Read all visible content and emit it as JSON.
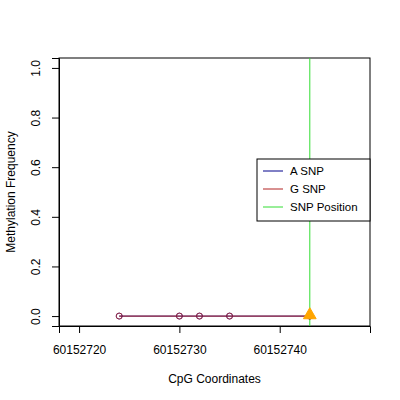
{
  "chart_data": {
    "type": "line",
    "xlabel": "CpG Coordinates",
    "ylabel": "Methylation Frequency",
    "xlim": [
      60152718,
      60152749
    ],
    "xticks": [
      60152720,
      60152730,
      60152740
    ],
    "ylim": [
      -0.04,
      1.04
    ],
    "yticks": [
      {
        "value": 0,
        "label": "0.0"
      },
      {
        "value": 0.2,
        "label": "0.2"
      },
      {
        "value": 0.4,
        "label": "0.4"
      },
      {
        "value": 0.6,
        "label": "0.6"
      },
      {
        "value": 0.8,
        "label": "0.8"
      },
      {
        "value": 1,
        "label": "1.0"
      }
    ],
    "legend": "right",
    "series": [
      {
        "name": "A SNP",
        "color": "#00008b",
        "marker": "circle",
        "x": [
          60152724,
          60152730,
          60152732,
          60152735,
          60152743
        ],
        "values": [
          0,
          0,
          0,
          0,
          0
        ]
      },
      {
        "name": "G SNP",
        "color": "#b22222",
        "marker": "circle",
        "x": [
          60152724,
          60152730,
          60152732,
          60152735,
          60152743
        ],
        "values": [
          0,
          0,
          0,
          0,
          0
        ]
      },
      {
        "name": "SNP Position",
        "color": "#33dd33",
        "type": "vline",
        "x": [
          60152743
        ]
      },
      {
        "type": "scatter",
        "color": "#ffa500",
        "marker": "triangle",
        "x": [
          60152743
        ],
        "values": [
          0
        ]
      }
    ]
  }
}
